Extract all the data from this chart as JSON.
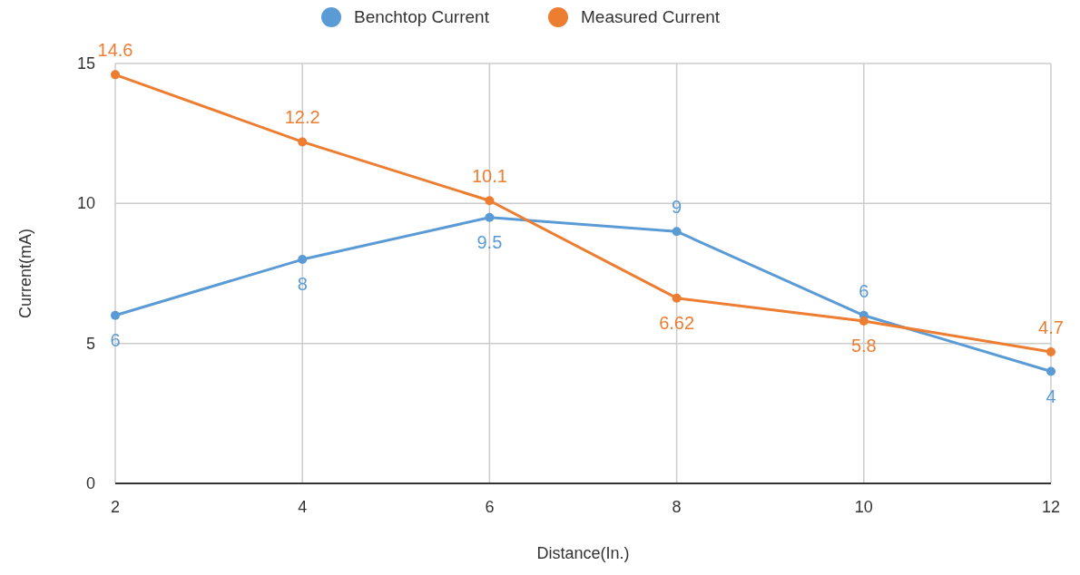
{
  "chart_data": {
    "type": "line",
    "x": [
      2,
      4,
      6,
      8,
      10,
      12
    ],
    "xlabel": "Distance(In.)",
    "ylabel": "Current(mA)",
    "series": [
      {
        "name": "Benchtop Current",
        "color": "#5b9bd5",
        "values": [
          6,
          8,
          9.5,
          9,
          6,
          4
        ]
      },
      {
        "name": "Measured Current",
        "color": "#ed7d31",
        "values": [
          14.6,
          12.2,
          10.1,
          6.62,
          5.8,
          4.7
        ]
      }
    ],
    "xlim": [
      2,
      12
    ],
    "xticks": [
      2,
      4,
      6,
      8,
      10,
      12
    ],
    "ylim": [
      0,
      15
    ],
    "yticks": [
      0,
      5,
      10,
      15
    ],
    "grid": true,
    "legend": "top",
    "marker": "circle",
    "data_labels": true
  }
}
